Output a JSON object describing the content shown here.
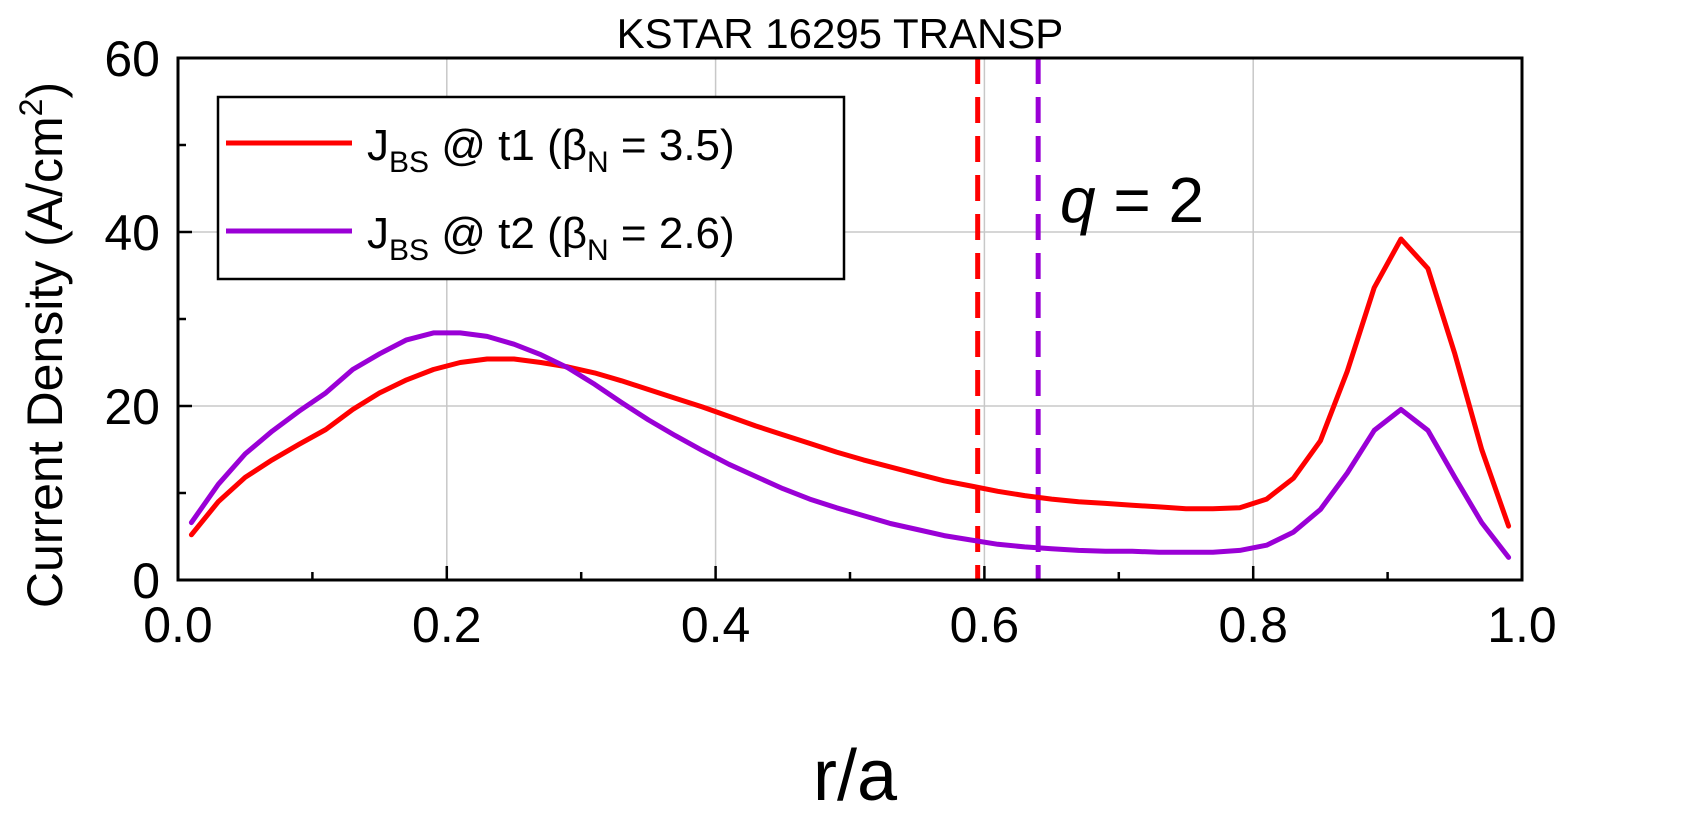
{
  "chart_data": {
    "type": "line",
    "title": "KSTAR 16295 TRANSP",
    "xlabel": "r/a",
    "ylabel": {
      "main": "Current Density (A/cm",
      "sup": "2",
      "tail": ")"
    },
    "xlim": [
      0,
      1.0
    ],
    "ylim": [
      0,
      60
    ],
    "xticks": [
      0,
      0.2,
      0.4,
      0.6,
      0.8,
      1.0
    ],
    "xtick_labels": [
      "0.0",
      "0.2",
      "0.4",
      "0.6",
      "0.8",
      "1.0"
    ],
    "yticks": [
      0,
      20,
      40,
      60
    ],
    "ytick_labels": [
      "0",
      "20",
      "40",
      "60"
    ],
    "grid": true,
    "legend_position": "top-left",
    "x": [
      0.01,
      0.03,
      0.05,
      0.07,
      0.09,
      0.11,
      0.13,
      0.15,
      0.17,
      0.19,
      0.21,
      0.23,
      0.25,
      0.27,
      0.29,
      0.31,
      0.33,
      0.35,
      0.37,
      0.39,
      0.41,
      0.43,
      0.45,
      0.47,
      0.49,
      0.51,
      0.53,
      0.55,
      0.57,
      0.59,
      0.61,
      0.63,
      0.65,
      0.67,
      0.69,
      0.71,
      0.73,
      0.75,
      0.77,
      0.79,
      0.81,
      0.83,
      0.85,
      0.87,
      0.89,
      0.91,
      0.93,
      0.95,
      0.97,
      0.99
    ],
    "series": [
      {
        "name": {
          "main": "J",
          "sub1": "BS",
          "mid": " @ t1 (β",
          "sub2": "N",
          "tail": " = 3.5)"
        },
        "color": "#ff0000",
        "values": [
          5.2,
          9.0,
          11.8,
          13.8,
          15.6,
          17.3,
          19.6,
          21.5,
          23.0,
          24.2,
          25.0,
          25.4,
          25.4,
          25.0,
          24.5,
          23.8,
          22.9,
          21.9,
          20.9,
          19.9,
          18.8,
          17.7,
          16.7,
          15.7,
          14.7,
          13.8,
          13.0,
          12.2,
          11.4,
          10.8,
          10.2,
          9.7,
          9.3,
          9.0,
          8.8,
          8.6,
          8.4,
          8.2,
          8.2,
          8.3,
          9.3,
          11.7,
          16.0,
          24.0,
          33.6,
          39.2,
          35.8,
          26.0,
          15.0,
          6.2
        ]
      },
      {
        "name": {
          "main": "J",
          "sub1": "BS",
          "mid": " @ t2 (β",
          "sub2": "N",
          "tail": " = 2.6)"
        },
        "color": "#9a00d6",
        "values": [
          6.6,
          11.0,
          14.5,
          17.1,
          19.4,
          21.5,
          24.2,
          26.0,
          27.6,
          28.4,
          28.4,
          28.0,
          27.1,
          25.9,
          24.4,
          22.5,
          20.4,
          18.4,
          16.6,
          14.9,
          13.3,
          11.9,
          10.5,
          9.3,
          8.3,
          7.4,
          6.5,
          5.8,
          5.1,
          4.6,
          4.1,
          3.8,
          3.6,
          3.4,
          3.3,
          3.3,
          3.2,
          3.2,
          3.2,
          3.4,
          4.0,
          5.5,
          8.1,
          12.3,
          17.2,
          19.6,
          17.2,
          11.8,
          6.6,
          2.6
        ]
      }
    ],
    "vlines": [
      {
        "x": 0.595,
        "color": "#ff0000",
        "style": "dashed"
      },
      {
        "x": 0.64,
        "color": "#9a00d6",
        "style": "dashed"
      }
    ],
    "annotation": {
      "italic": "q",
      "rest": " = 2"
    }
  }
}
